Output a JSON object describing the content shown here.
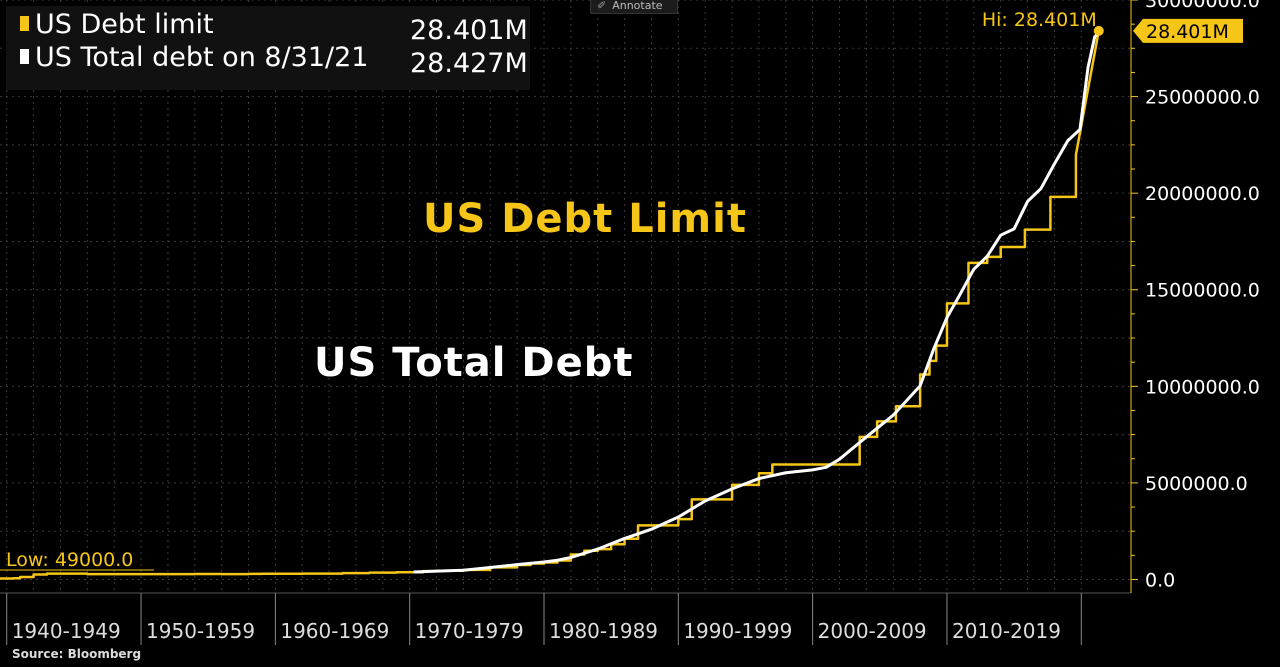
{
  "toolbar": {
    "annotate_label": "Annotate"
  },
  "legend": {
    "items": [
      {
        "label": "US Debt limit",
        "value": "28.401M",
        "color": "#f5c518"
      },
      {
        "label": "US Total debt on 8/31/21",
        "value": "28.427M",
        "color": "#ffffff"
      }
    ]
  },
  "labels": {
    "debt_limit": "US Debt Limit",
    "total_debt": "US Total Debt"
  },
  "source": "Source: Bloomberg",
  "chart_data": {
    "type": "line",
    "x_unit": "year",
    "xlim": [
      1939.5,
      2023.7
    ],
    "ylim": [
      -700000,
      30000000
    ],
    "y_ticks": [
      0,
      5000000,
      10000000,
      15000000,
      20000000,
      25000000,
      30000000
    ],
    "y_tick_labels": [
      "0.0",
      "5000000.0",
      "10000000.0",
      "15000000.0",
      "20000000.0",
      "25000000.0",
      "30000000.0"
    ],
    "x_categories": [
      "1940-1949",
      "1950-1959",
      "1960-1969",
      "1970-1979",
      "1980-1989",
      "1990-1999",
      "2000-2009",
      "2010-2019"
    ],
    "x_category_starts": [
      1940,
      1950,
      1960,
      1970,
      1980,
      1990,
      2000,
      2010,
      2020
    ],
    "low_label": "Low: 49000.0",
    "high_label": "Hi: 28.401M",
    "last_value_label": "28.401M",
    "grid": true,
    "series": [
      {
        "name": "US Debt limit",
        "color": "#f5c518",
        "step": true,
        "x": [
          1939.5,
          1940.5,
          1941.0,
          1942.0,
          1943.0,
          1944.0,
          1945.0,
          1946.0,
          1954.0,
          1956.0,
          1958.0,
          1959.0,
          1962.0,
          1965.0,
          1967.0,
          1969.0,
          1971.0,
          1972.0,
          1974.0,
          1976.0,
          1978.0,
          1979.0,
          1980.0,
          1981.0,
          1982.0,
          1983.0,
          1984.0,
          1985.0,
          1986.0,
          1987.0,
          1988.0,
          1990.0,
          1991.0,
          1993.0,
          1994.0,
          1996.0,
          1997.0,
          2002.0,
          2003.5,
          2004.8,
          2006.2,
          2008.0,
          2008.7,
          2009.2,
          2010.0,
          2011.6,
          2013.0,
          2014.0,
          2015.8,
          2017.7,
          2019.6,
          2021.3
        ],
        "y": [
          49000,
          65000,
          130000,
          260000,
          300000,
          300000,
          300000,
          275000,
          281000,
          278000,
          288000,
          295000,
          300000,
          328000,
          358000,
          377000,
          430000,
          450000,
          495000,
          627000,
          752000,
          830000,
          879000,
          985000,
          1290000,
          1490000,
          1573000,
          1823000,
          2111000,
          2800000,
          2800000,
          3123000,
          4145000,
          4145000,
          4900000,
          5500000,
          5950000,
          5950000,
          7384000,
          8184000,
          8965000,
          10615000,
          11315000,
          12104000,
          14294000,
          16394000,
          16699000,
          17212000,
          18113000,
          19808000,
          21988000,
          28401000
        ]
      },
      {
        "name": "US Total debt on 8/31/21",
        "color": "#ffffff",
        "step": false,
        "x": [
          1970.3,
          1972,
          1974,
          1976,
          1978,
          1980,
          1981,
          1982,
          1984,
          1986,
          1988,
          1990,
          1992,
          1994,
          1996,
          1998,
          2000,
          2001,
          2002,
          2004,
          2006,
          2008,
          2009,
          2010,
          2011,
          2012,
          2013,
          2014,
          2015,
          2016,
          2017,
          2018,
          2019,
          2019.9,
          2020.5,
          2021.0,
          2021.5
        ],
        "y": [
          385000,
          430000,
          480000,
          620000,
          770000,
          908000,
          998000,
          1142000,
          1572000,
          2125000,
          2602000,
          3233000,
          4065000,
          4693000,
          5225000,
          5526000,
          5674000,
          5807000,
          6228000,
          7379000,
          8507000,
          10025000,
          11910000,
          13562000,
          14790000,
          16066000,
          16738000,
          17824000,
          18151000,
          19573000,
          20245000,
          21516000,
          22719000,
          23300000,
          26500000,
          28100000,
          28427000
        ]
      }
    ]
  }
}
